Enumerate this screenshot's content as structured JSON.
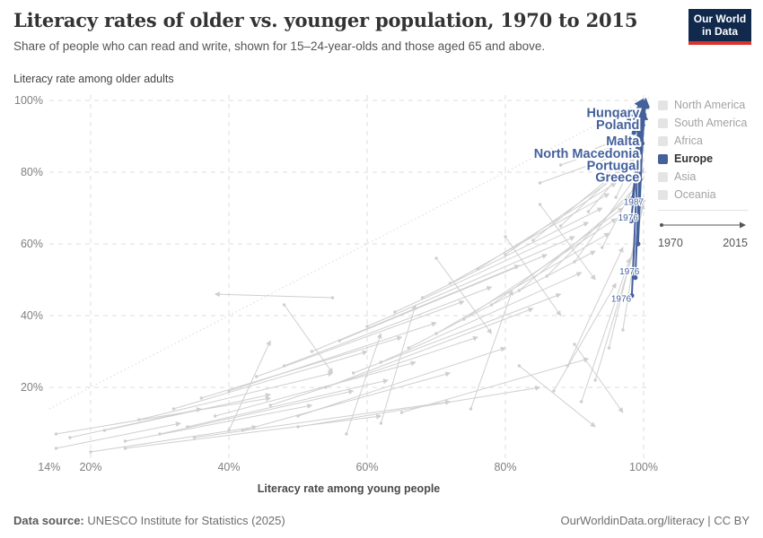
{
  "header": {
    "title": "Literacy rates of older vs. younger population, 1970 to 2015",
    "subtitle": "Share of people who can read and write, shown for 15–24-year-olds and those aged 65 and above."
  },
  "logo": {
    "line1": "Our World",
    "line2": "in Data",
    "bg_color": "#10294C",
    "stripe_color": "#D7342C"
  },
  "legend": {
    "items": [
      {
        "label": "North America",
        "active": false
      },
      {
        "label": "South America",
        "active": false
      },
      {
        "label": "Africa",
        "active": false
      },
      {
        "label": "Europe",
        "active": true
      },
      {
        "label": "Asia",
        "active": false
      },
      {
        "label": "Oceania",
        "active": false
      }
    ],
    "active_swatch_color": "#44619C",
    "inactive_swatch_color": "#e4e4e4",
    "timeline": {
      "start_label": "1970",
      "end_label": "2015"
    }
  },
  "footer": {
    "source_label": "Data source:",
    "source_text": " UNESCO Institute for Statistics (2025)",
    "attribution": "OurWorldinData.org/literacy | CC BY"
  },
  "chart_data": {
    "type": "scatter",
    "title": "Literacy rates of older vs. younger population, 1970 to 2015",
    "xlabel": "Literacy rate among young people",
    "ylabel": "Literacy rate among older adults",
    "xlim": [
      14,
      101.5
    ],
    "ylim": [
      0,
      101.5
    ],
    "grid": true,
    "x_ticks": [
      {
        "value": 14,
        "label": "14%",
        "grid": false
      },
      {
        "value": 20,
        "label": "20%",
        "grid": true
      },
      {
        "value": 40,
        "label": "40%",
        "grid": true
      },
      {
        "value": 60,
        "label": "60%",
        "grid": true
      },
      {
        "value": 80,
        "label": "80%",
        "grid": true
      },
      {
        "value": 100,
        "label": "100%",
        "grid": true
      }
    ],
    "y_ticks": [
      {
        "value": 20,
        "label": "20%",
        "grid": true
      },
      {
        "value": 40,
        "label": "40%",
        "grid": true
      },
      {
        "value": 60,
        "label": "60%",
        "grid": true
      },
      {
        "value": 80,
        "label": "80%",
        "grid": true
      },
      {
        "value": 100,
        "label": "100%",
        "grid": true
      }
    ],
    "parity_line": {
      "x1": 14,
      "y1": 14,
      "x2": 101,
      "y2": 101
    },
    "colors": {
      "europe": "#44619C",
      "background": "#cfcfcf",
      "grid": "#dedede",
      "tick": "#7f7f7f"
    },
    "background_series": {
      "name": "Countries in other regions, 1970 to 2015 (young% , old%) start to end",
      "segments": [
        [
          15,
          3,
          33,
          10
        ],
        [
          17,
          6,
          36,
          14
        ],
        [
          20,
          2,
          44,
          9
        ],
        [
          22,
          8,
          46,
          18
        ],
        [
          25,
          5,
          52,
          15
        ],
        [
          27,
          11,
          55,
          24
        ],
        [
          30,
          7,
          58,
          19
        ],
        [
          32,
          14,
          60,
          30
        ],
        [
          34,
          9,
          63,
          22
        ],
        [
          36,
          17,
          65,
          34
        ],
        [
          38,
          12,
          67,
          27
        ],
        [
          40,
          19,
          70,
          38
        ],
        [
          42,
          8,
          72,
          24
        ],
        [
          44,
          23,
          74,
          44
        ],
        [
          46,
          15,
          76,
          34
        ],
        [
          48,
          26,
          78,
          48
        ],
        [
          50,
          12,
          80,
          31
        ],
        [
          52,
          30,
          82,
          54
        ],
        [
          54,
          20,
          84,
          42
        ],
        [
          56,
          33,
          86,
          57
        ],
        [
          58,
          24,
          88,
          46
        ],
        [
          60,
          37,
          90,
          62
        ],
        [
          62,
          27,
          91,
          52
        ],
        [
          64,
          41,
          92,
          66
        ],
        [
          66,
          31,
          93,
          58
        ],
        [
          68,
          45,
          94,
          70
        ],
        [
          70,
          35,
          95,
          63
        ],
        [
          72,
          49,
          95,
          74
        ],
        [
          74,
          39,
          96,
          67
        ],
        [
          76,
          53,
          96,
          77
        ],
        [
          78,
          43,
          97,
          70
        ],
        [
          80,
          57,
          97,
          80
        ],
        [
          82,
          47,
          98,
          73
        ],
        [
          84,
          61,
          98,
          83
        ],
        [
          86,
          51,
          99,
          76
        ],
        [
          88,
          65,
          99,
          85
        ],
        [
          90,
          55,
          99,
          79
        ],
        [
          92,
          69,
          100,
          87
        ],
        [
          94,
          59,
          100,
          81
        ],
        [
          96,
          73,
          100,
          89
        ],
        [
          88,
          82,
          100,
          90
        ],
        [
          91,
          85,
          100,
          92
        ],
        [
          85,
          77,
          98,
          86
        ],
        [
          62,
          10,
          67,
          43
        ],
        [
          40,
          8,
          46,
          33
        ],
        [
          57,
          7,
          62,
          35
        ],
        [
          75,
          14,
          81,
          47
        ],
        [
          80,
          62,
          88,
          40
        ],
        [
          70,
          56,
          78,
          35
        ],
        [
          85,
          71,
          93,
          50
        ],
        [
          48,
          43,
          55,
          24
        ],
        [
          82,
          26,
          93,
          9
        ],
        [
          90,
          32,
          97,
          13
        ],
        [
          55,
          45,
          38,
          46
        ],
        [
          25,
          3,
          62,
          12
        ],
        [
          35,
          6,
          72,
          16
        ],
        [
          50,
          9,
          85,
          20
        ],
        [
          65,
          13,
          92,
          28
        ],
        [
          15,
          7,
          46,
          17
        ],
        [
          93,
          22,
          99,
          61
        ],
        [
          95,
          31,
          100,
          71
        ],
        [
          91,
          16,
          98,
          56
        ],
        [
          89,
          26,
          97,
          59
        ],
        [
          87,
          19,
          96,
          49
        ],
        [
          97,
          36,
          100,
          73
        ]
      ]
    },
    "europe_series": {
      "name": "Europe, 1970 to 2015 (young%, old%) start to end",
      "segments": [
        [
          97.9,
          94.5,
          99.9,
          100.2
        ],
        [
          98.6,
          91,
          100.0,
          99.6
        ],
        [
          98.9,
          85,
          99.5,
          98.8
        ],
        [
          98.4,
          72.7,
          99.9,
          97.6
        ],
        [
          98.2,
          66.4,
          99.7,
          95.2
        ],
        [
          98.8,
          50.6,
          99.8,
          98.2
        ],
        [
          98.3,
          45.6,
          99.4,
          93.5
        ],
        [
          99.5,
          78,
          100.2,
          99.9
        ],
        [
          99.2,
          60,
          100.0,
          96.8
        ],
        [
          99.8,
          88,
          100.3,
          100.3
        ]
      ]
    },
    "country_labels": [
      {
        "text": "Hungary",
        "x": 99.4,
        "y": 96.6
      },
      {
        "text": "Poland",
        "x": 99.4,
        "y": 93.3
      },
      {
        "text": "Malta",
        "x": 99.4,
        "y": 88.7
      },
      {
        "text": "North Macedonia",
        "x": 99.4,
        "y": 85.2
      },
      {
        "text": "Portugal",
        "x": 99.4,
        "y": 81.9
      },
      {
        "text": "Greece",
        "x": 99.4,
        "y": 78.6
      }
    ],
    "year_labels": [
      {
        "text": "1987",
        "x": 100.0,
        "y": 71.6
      },
      {
        "text": "1976",
        "x": 99.2,
        "y": 67.2
      },
      {
        "text": "1976",
        "x": 99.4,
        "y": 52.2
      },
      {
        "text": "1976",
        "x": 98.2,
        "y": 44.6
      }
    ],
    "legend_position": "right",
    "legend_entries": [
      "North America",
      "South America",
      "Africa",
      "Europe",
      "Asia",
      "Oceania"
    ]
  }
}
